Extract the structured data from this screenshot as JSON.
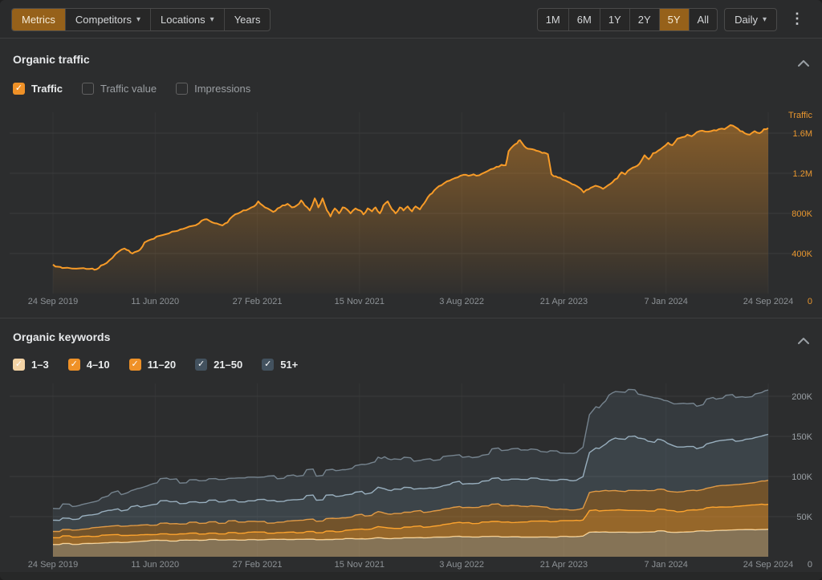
{
  "app": {
    "background": "#2c2d2e",
    "accent_orange": "#e8962e"
  },
  "toolbar": {
    "left": [
      {
        "label": "Metrics",
        "active": true
      },
      {
        "label": "Competitors",
        "dropdown": true
      },
      {
        "label": "Locations",
        "dropdown": true
      },
      {
        "label": "Years"
      }
    ],
    "ranges": [
      {
        "label": "1M"
      },
      {
        "label": "6M"
      },
      {
        "label": "1Y"
      },
      {
        "label": "2Y"
      },
      {
        "label": "5Y",
        "active": true
      },
      {
        "label": "All"
      }
    ],
    "interval": {
      "label": "Daily",
      "dropdown": true
    },
    "menu_icon": "kebab-vertical"
  },
  "sections": {
    "traffic": {
      "title": "Organic traffic",
      "collapse_icon": "chevron-up",
      "legend": [
        {
          "label": "Traffic",
          "checked": true,
          "box_color": "#ef9127"
        },
        {
          "label": "Traffic value",
          "checked": false
        },
        {
          "label": "Impressions",
          "checked": false
        }
      ]
    },
    "keywords": {
      "title": "Organic keywords",
      "collapse_icon": "chevron-up",
      "legend": [
        {
          "label": "1–3",
          "checked": true,
          "box_color": "#f3d3a4"
        },
        {
          "label": "4–10",
          "checked": true,
          "box_color": "#ef9127"
        },
        {
          "label": "11–20",
          "checked": true,
          "box_color": "#ef9127"
        },
        {
          "label": "21–50",
          "checked": true,
          "box_color": "#43525f"
        },
        {
          "label": "51+",
          "checked": true,
          "box_color": "#43525f"
        }
      ]
    }
  },
  "chart_data": [
    {
      "type": "area",
      "title": "Organic traffic",
      "ylabel": "Traffic",
      "values_unit": "thousands",
      "ylim": [
        0,
        1800
      ],
      "grid": true,
      "axis_label_color": "#e8962e",
      "date_label_color": "#8d9296",
      "line_color": "#f79b28",
      "fill_gradient": [
        "rgba(244,152,38,0.45)",
        "rgba(244,152,38,0.02)"
      ],
      "x_ticks": [
        "24 Sep 2019",
        "11 Jun 2020",
        "27 Feb 2021",
        "15 Nov 2021",
        "3 Aug 2022",
        "21 Apr 2023",
        "7 Jan 2024",
        "24 Sep 2024"
      ],
      "y_ticks": [
        {
          "label": "1.6M",
          "value": 1600
        },
        {
          "label": "1.2M",
          "value": 1200
        },
        {
          "label": "800K",
          "value": 800
        },
        {
          "label": "400K",
          "value": 400
        },
        {
          "label": "0",
          "value": 0
        }
      ],
      "points": [
        [
          0,
          290
        ],
        [
          0.007,
          268
        ],
        [
          0.013,
          255
        ],
        [
          0.027,
          250
        ],
        [
          0.038,
          252
        ],
        [
          0.047,
          246
        ],
        [
          0.055,
          250
        ],
        [
          0.061,
          243
        ],
        [
          0.067,
          280
        ],
        [
          0.075,
          305
        ],
        [
          0.083,
          356
        ],
        [
          0.092,
          420
        ],
        [
          0.1,
          450
        ],
        [
          0.106,
          430
        ],
        [
          0.111,
          400
        ],
        [
          0.117,
          420
        ],
        [
          0.122,
          440
        ],
        [
          0.128,
          510
        ],
        [
          0.137,
          540
        ],
        [
          0.145,
          570
        ],
        [
          0.154,
          585
        ],
        [
          0.162,
          600
        ],
        [
          0.171,
          622
        ],
        [
          0.178,
          640
        ],
        [
          0.186,
          655
        ],
        [
          0.195,
          675
        ],
        [
          0.204,
          700
        ],
        [
          0.212,
          740
        ],
        [
          0.218,
          730
        ],
        [
          0.223,
          710
        ],
        [
          0.229,
          700
        ],
        [
          0.237,
          680
        ],
        [
          0.244,
          710
        ],
        [
          0.251,
          770
        ],
        [
          0.259,
          800
        ],
        [
          0.266,
          830
        ],
        [
          0.274,
          845
        ],
        [
          0.281,
          870
        ],
        [
          0.287,
          920
        ],
        [
          0.293,
          880
        ],
        [
          0.3,
          850
        ],
        [
          0.308,
          815
        ],
        [
          0.314,
          850
        ],
        [
          0.321,
          880
        ],
        [
          0.328,
          895
        ],
        [
          0.334,
          860
        ],
        [
          0.341,
          880
        ],
        [
          0.347,
          930
        ],
        [
          0.352,
          880
        ],
        [
          0.359,
          830
        ],
        [
          0.366,
          950
        ],
        [
          0.371,
          860
        ],
        [
          0.377,
          950
        ],
        [
          0.383,
          830
        ],
        [
          0.388,
          770
        ],
        [
          0.394,
          850
        ],
        [
          0.4,
          800
        ],
        [
          0.405,
          860
        ],
        [
          0.411,
          840
        ],
        [
          0.416,
          800
        ],
        [
          0.423,
          850
        ],
        [
          0.429,
          830
        ],
        [
          0.434,
          790
        ],
        [
          0.44,
          850
        ],
        [
          0.446,
          820
        ],
        [
          0.451,
          860
        ],
        [
          0.457,
          800
        ],
        [
          0.462,
          880
        ],
        [
          0.468,
          920
        ],
        [
          0.474,
          840
        ],
        [
          0.479,
          800
        ],
        [
          0.485,
          860
        ],
        [
          0.49,
          830
        ],
        [
          0.496,
          870
        ],
        [
          0.502,
          820
        ],
        [
          0.507,
          870
        ],
        [
          0.513,
          840
        ],
        [
          0.519,
          900
        ],
        [
          0.524,
          960
        ],
        [
          0.53,
          1000
        ],
        [
          0.536,
          1050
        ],
        [
          0.543,
          1080
        ],
        [
          0.551,
          1120
        ],
        [
          0.558,
          1140
        ],
        [
          0.566,
          1160
        ],
        [
          0.574,
          1185
        ],
        [
          0.581,
          1175
        ],
        [
          0.588,
          1190
        ],
        [
          0.596,
          1180
        ],
        [
          0.604,
          1210
        ],
        [
          0.612,
          1240
        ],
        [
          0.62,
          1265
        ],
        [
          0.627,
          1285
        ],
        [
          0.633,
          1280
        ],
        [
          0.637,
          1420
        ],
        [
          0.643,
          1470
        ],
        [
          0.649,
          1500
        ],
        [
          0.653,
          1530
        ],
        [
          0.659,
          1470
        ],
        [
          0.664,
          1445
        ],
        [
          0.67,
          1440
        ],
        [
          0.676,
          1425
        ],
        [
          0.681,
          1415
        ],
        [
          0.687,
          1405
        ],
        [
          0.692,
          1390
        ],
        [
          0.697,
          1190
        ],
        [
          0.703,
          1170
        ],
        [
          0.709,
          1155
        ],
        [
          0.716,
          1130
        ],
        [
          0.723,
          1105
        ],
        [
          0.729,
          1085
        ],
        [
          0.736,
          1055
        ],
        [
          0.742,
          1010
        ],
        [
          0.749,
          1040
        ],
        [
          0.755,
          1065
        ],
        [
          0.762,
          1070
        ],
        [
          0.769,
          1045
        ],
        [
          0.776,
          1080
        ],
        [
          0.782,
          1110
        ],
        [
          0.789,
          1150
        ],
        [
          0.795,
          1210
        ],
        [
          0.8,
          1190
        ],
        [
          0.807,
          1240
        ],
        [
          0.814,
          1265
        ],
        [
          0.82,
          1295
        ],
        [
          0.827,
          1380
        ],
        [
          0.833,
          1340
        ],
        [
          0.839,
          1400
        ],
        [
          0.846,
          1425
        ],
        [
          0.853,
          1460
        ],
        [
          0.86,
          1505
        ],
        [
          0.866,
          1480
        ],
        [
          0.873,
          1545
        ],
        [
          0.88,
          1560
        ],
        [
          0.887,
          1585
        ],
        [
          0.893,
          1570
        ],
        [
          0.9,
          1610
        ],
        [
          0.908,
          1625
        ],
        [
          0.916,
          1615
        ],
        [
          0.924,
          1630
        ],
        [
          0.931,
          1640
        ],
        [
          0.939,
          1640
        ],
        [
          0.947,
          1680
        ],
        [
          0.954,
          1660
        ],
        [
          0.961,
          1620
        ],
        [
          0.967,
          1600
        ],
        [
          0.974,
          1585
        ],
        [
          0.981,
          1620
        ],
        [
          0.988,
          1600
        ],
        [
          0.994,
          1640
        ],
        [
          1,
          1650
        ]
      ]
    },
    {
      "type": "stacked-area",
      "title": "Organic keywords",
      "values_unit": "thousands",
      "ylim": [
        0,
        215
      ],
      "grid": true,
      "axis_label_color": "#9aa0a5",
      "date_label_color": "#8d9296",
      "x_ticks": [
        "24 Sep 2019",
        "11 Jun 2020",
        "27 Feb 2021",
        "15 Nov 2021",
        "3 Aug 2022",
        "21 Apr 2023",
        "7 Jan 2024",
        "24 Sep 2024"
      ],
      "y_ticks": [
        {
          "label": "200K",
          "value": 200
        },
        {
          "label": "150K",
          "value": 150
        },
        {
          "label": "100K",
          "value": 100
        },
        {
          "label": "50K",
          "value": 50
        },
        {
          "label": "0",
          "value": 0
        }
      ],
      "x": [
        0,
        0.03,
        0.06,
        0.09,
        0.115,
        0.143,
        0.18,
        0.22,
        0.26,
        0.287,
        0.32,
        0.36,
        0.4,
        0.429,
        0.445,
        0.455,
        0.47,
        0.5,
        0.53,
        0.573,
        0.6,
        0.63,
        0.66,
        0.69,
        0.715,
        0.73,
        0.742,
        0.748,
        0.77,
        0.785,
        0.8,
        0.82,
        0.85,
        0.87,
        0.9,
        0.93,
        0.96,
        0.98,
        1
      ],
      "series": [
        {
          "name": "1–3",
          "line_color": "#f6e3ba",
          "fill_color": "rgba(222,186,126,0.50)",
          "values": [
            16,
            16,
            17,
            18,
            19,
            20,
            20,
            21,
            21,
            21,
            22,
            22,
            22,
            22,
            23,
            24,
            23,
            23,
            24,
            25,
            25,
            25,
            25,
            25,
            25,
            25,
            26,
            30,
            31,
            31,
            31,
            31,
            32,
            31,
            32,
            33,
            34,
            34,
            35
          ]
        },
        {
          "name": "4–10",
          "line_color": "#ffa630",
          "fill_color": "rgba(238,152,40,0.55)",
          "values": [
            9,
            9,
            9,
            9,
            8,
            8,
            8,
            8,
            8,
            9,
            8,
            9,
            10,
            12,
            12,
            14,
            13,
            13,
            14,
            17,
            18,
            18,
            19,
            19,
            20,
            20,
            21,
            26,
            27,
            28,
            27,
            27,
            26,
            26,
            27,
            29,
            29,
            31,
            32
          ]
        },
        {
          "name": "11–20",
          "line_color": "#e9993a",
          "fill_color": "rgba(238,152,40,0.36)",
          "values": [
            9,
            9,
            10,
            11,
            12,
            12,
            13,
            13,
            14,
            13,
            14,
            15,
            16,
            18,
            18,
            19,
            18,
            18,
            19,
            20,
            20,
            21,
            19,
            17,
            14,
            14,
            15,
            22,
            24,
            24,
            24,
            24,
            25,
            24,
            24,
            26,
            27,
            27,
            29
          ]
        },
        {
          "name": "21–50",
          "line_color": "#9db3c2",
          "fill_color": "rgba(125,160,185,0.20)",
          "values": [
            15,
            14,
            16,
            20,
            23,
            27,
            27,
            27,
            27,
            27,
            27,
            28,
            28,
            27,
            28,
            32,
            30,
            29,
            29,
            31,
            32,
            33,
            34,
            35,
            37,
            36,
            38,
            48,
            58,
            65,
            65,
            66,
            60,
            55,
            53,
            55,
            56,
            56,
            56
          ]
        },
        {
          "name": "51+",
          "line_color": "#75838e",
          "fill_color": "rgba(105,130,148,0.16)",
          "values": [
            16,
            16,
            18,
            20,
            23,
            26,
            28,
            28,
            28,
            28,
            29,
            30,
            32,
            34,
            35,
            40,
            37,
            36,
            36,
            33,
            34,
            36,
            38,
            36,
            35,
            35,
            38,
            46,
            56,
            57,
            57,
            55,
            53,
            52,
            54,
            54,
            54,
            54,
            54
          ]
        }
      ]
    }
  ]
}
